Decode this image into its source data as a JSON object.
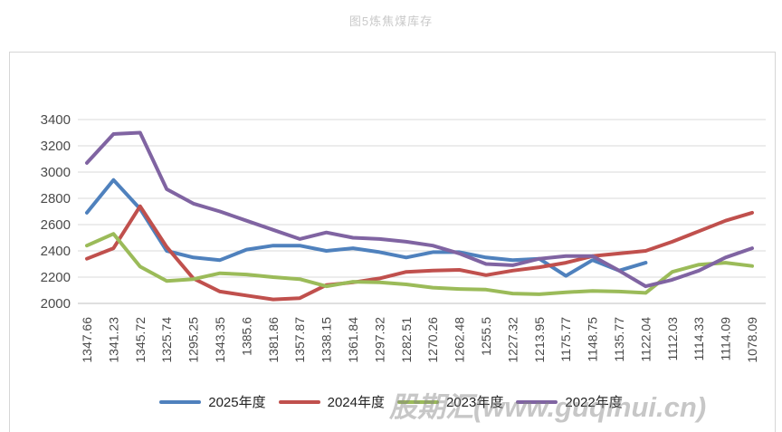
{
  "title": "图5炼焦煤库存",
  "watermark": "股期汇(www.guqihui.cn)",
  "colors": {
    "grid": "#d9d9d9",
    "axis": "#bfbfbf",
    "tick_text": "#4a4a4a",
    "series_2025": "#4F81BD",
    "series_2024": "#C0504D",
    "series_2023": "#9BBB59",
    "series_2022": "#8064A2"
  },
  "chart_data": {
    "type": "line",
    "title": "图5炼焦煤库存",
    "grid": "horizontal",
    "legend_position": "bottom",
    "ylim": [
      2000,
      3400
    ],
    "ytick_step": 200,
    "yticks": [
      2000,
      2200,
      2400,
      2600,
      2800,
      3000,
      3200,
      3400
    ],
    "categories": [
      "1347.66",
      "1341.23",
      "1345.72",
      "1325.74",
      "1295.25",
      "1343.35",
      "1385.6",
      "1381.86",
      "1357.87",
      "1338.15",
      "1361.84",
      "1297.32",
      "1282.51",
      "1270.26",
      "1262.48",
      "1255.5",
      "1227.32",
      "1213.95",
      "1175.77",
      "1148.75",
      "1135.77",
      "1122.04",
      "1112.03",
      "1114.33",
      "1114.09",
      "1078.09"
    ],
    "series": [
      {
        "name": "2025年度",
        "color": "#4F81BD",
        "values": [
          2690,
          2940,
          2720,
          2400,
          2350,
          2330,
          2410,
          2440,
          2440,
          2400,
          2420,
          2390,
          2350,
          2390,
          2390,
          2350,
          2330,
          2340,
          2210,
          2330,
          2250,
          2310
        ]
      },
      {
        "name": "2024年度",
        "color": "#C0504D",
        "values": [
          2340,
          2420,
          2740,
          2430,
          2190,
          2090,
          2060,
          2030,
          2040,
          2140,
          2160,
          2190,
          2240,
          2250,
          2255,
          2215,
          2250,
          2275,
          2310,
          2360,
          2380,
          2400,
          2470,
          2550,
          2630,
          2690
        ]
      },
      {
        "name": "2023年度",
        "color": "#9BBB59",
        "values": [
          2440,
          2530,
          2280,
          2170,
          2185,
          2230,
          2220,
          2200,
          2185,
          2130,
          2165,
          2160,
          2145,
          2120,
          2110,
          2105,
          2075,
          2070,
          2085,
          2095,
          2090,
          2080,
          2240,
          2295,
          2310,
          2285
        ]
      },
      {
        "name": "2022年度",
        "color": "#8064A2",
        "values": [
          3070,
          3290,
          3300,
          2870,
          2760,
          2700,
          2630,
          2560,
          2490,
          2540,
          2500,
          2490,
          2470,
          2440,
          2380,
          2300,
          2290,
          2340,
          2360,
          2360,
          2250,
          2130,
          2180,
          2250,
          2350,
          2420
        ]
      }
    ]
  }
}
